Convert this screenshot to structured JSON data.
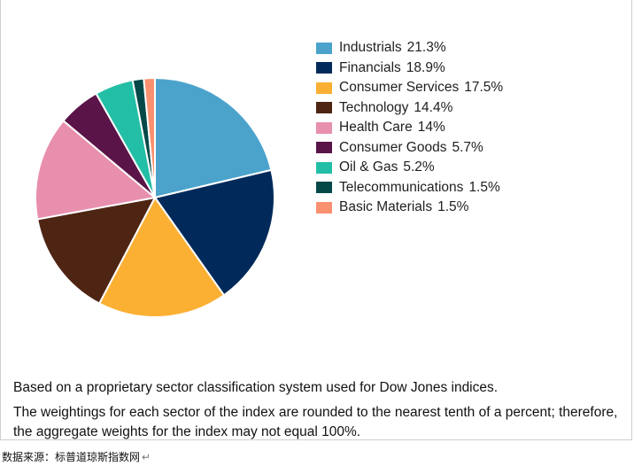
{
  "chart_data": {
    "type": "pie",
    "title": "",
    "slices": [
      {
        "label": "Industrials",
        "value": 21.3,
        "display": "21.3%",
        "color": "#4ba3cc"
      },
      {
        "label": "Financials",
        "value": 18.9,
        "display": "18.9%",
        "color": "#012a5b"
      },
      {
        "label": "Consumer Services",
        "value": 17.5,
        "display": "17.5%",
        "color": "#fbb034"
      },
      {
        "label": "Technology",
        "value": 14.4,
        "display": "14.4%",
        "color": "#4e2413"
      },
      {
        "label": "Health Care",
        "value": 14,
        "display": "14%",
        "color": "#e98fae"
      },
      {
        "label": "Consumer Goods",
        "value": 5.7,
        "display": "5.7%",
        "color": "#5a1448"
      },
      {
        "label": "Oil & Gas",
        "value": 5.2,
        "display": "5.2%",
        "color": "#23bea6"
      },
      {
        "label": "Telecommunications",
        "value": 1.5,
        "display": "1.5%",
        "color": "#054848"
      },
      {
        "label": "Basic Materials",
        "value": 1.5,
        "display": "1.5%",
        "color": "#f99170"
      }
    ],
    "legend_position": "right"
  },
  "notes": {
    "line1": "Based on a proprietary sector classification system used for Dow Jones indices.",
    "line2": "The weightings for each sector of the index are rounded to the nearest tenth of a percent; therefore, the aggregate weights for the index may not equal 100%."
  },
  "source": {
    "text": "数据来源：标普道琼斯指数网",
    "mark": "↵"
  }
}
